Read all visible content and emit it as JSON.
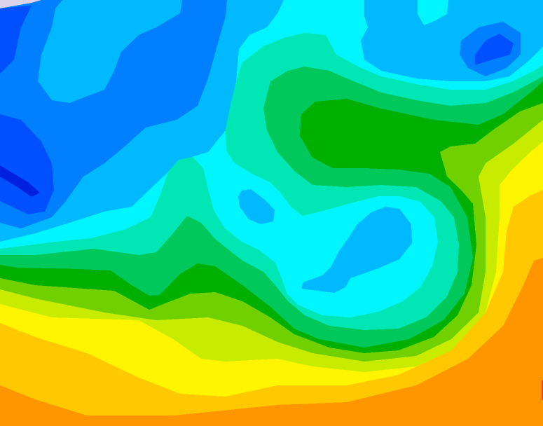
{
  "map": {
    "type": "filled-contour",
    "palette": {
      "lavender": "#dcd2ea",
      "navy": "#0020e0",
      "dark_blue": "#0050ff",
      "mid_blue": "#0080ff",
      "light_blue": "#00b9ff",
      "cyan": "#00f5ff",
      "aqua": "#00e6b4",
      "green": "#00c85a",
      "dark_green": "#00b000",
      "yellow_green": "#70d000",
      "lime": "#c8ec00",
      "yellow": "#fff500",
      "gold": "#ffc800",
      "orange": "#ff9600",
      "red": "#ff3c00"
    }
  }
}
